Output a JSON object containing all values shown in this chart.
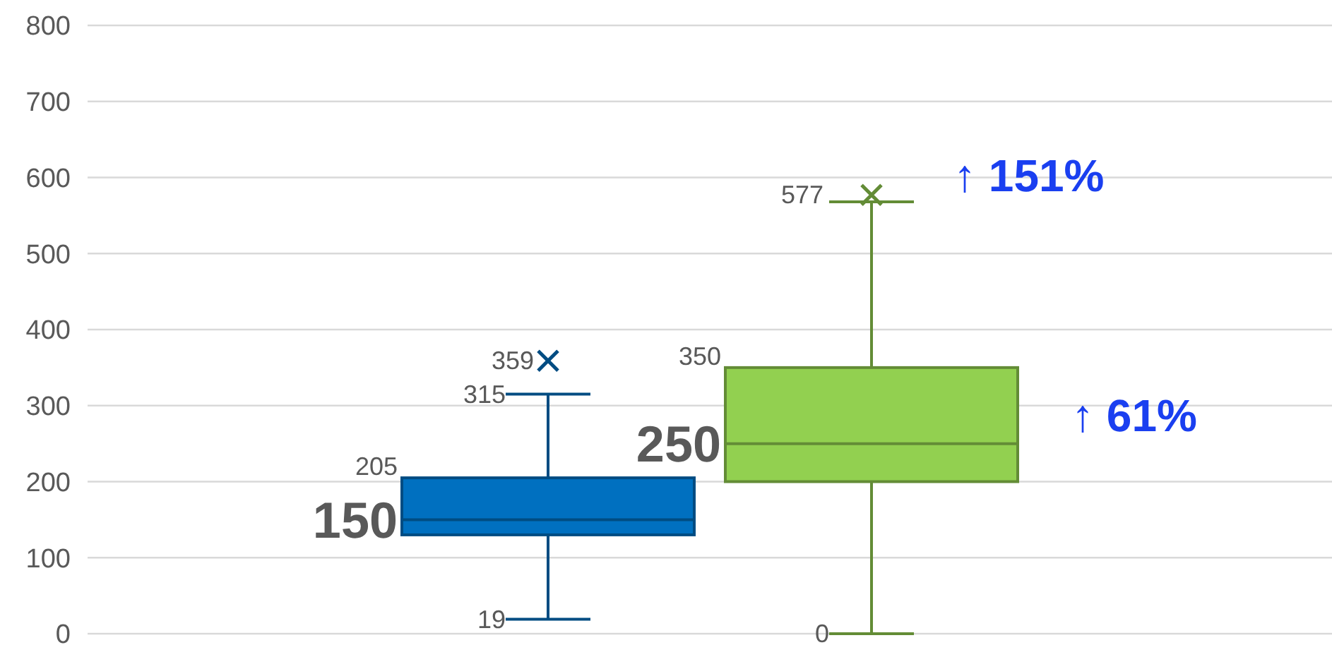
{
  "chart_data": {
    "type": "box",
    "categories": [
      null
    ],
    "series": [
      {
        "color": "#0070c0",
        "boxes": [
          {
            "low": 19,
            "q1": 130,
            "median": 150,
            "q3": 205,
            "high": 315,
            "outliers": [
              359
            ]
          }
        ]
      },
      {
        "color": "#92d050",
        "boxes": [
          {
            "low": 0,
            "q1": 200,
            "median": 250,
            "q3": 350,
            "high": 568,
            "outliers": [
              577
            ]
          }
        ]
      }
    ],
    "annotations": [
      "↑ 151%",
      "↑ 61%",
      "359",
      "315",
      "205",
      "150",
      "19",
      "577",
      "350",
      "250",
      "0"
    ],
    "ylim": [
      0,
      800
    ],
    "yticks": [
      0,
      100,
      200,
      300,
      400,
      500,
      600,
      700,
      800
    ],
    "grid": "y",
    "marker": "cross"
  }
}
